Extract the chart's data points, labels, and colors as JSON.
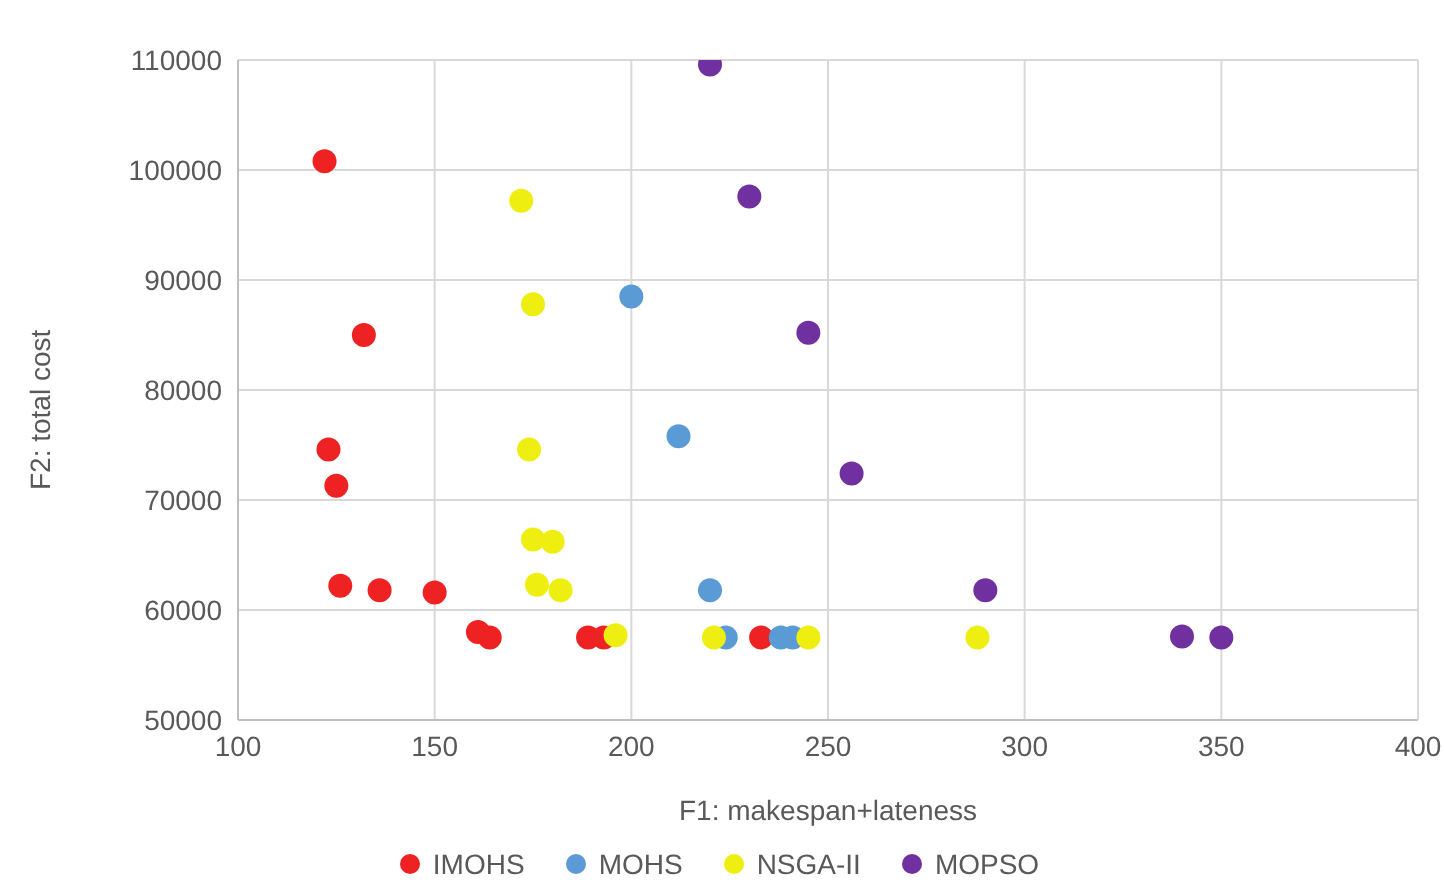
{
  "chart_data": {
    "type": "scatter",
    "xlabel": "F1: makespan+lateness",
    "ylabel": "F2: total cost",
    "xlim": [
      100,
      400
    ],
    "xticks": [
      100,
      150,
      200,
      250,
      300,
      350,
      400
    ],
    "ylim": [
      50000,
      110000
    ],
    "yticks": [
      50000,
      60000,
      70000,
      80000,
      90000,
      100000,
      110000
    ],
    "grid": true,
    "legend": "bottom",
    "marker": "circle",
    "series": [
      {
        "name": "IMOHS",
        "color": "#ee2222",
        "x": [
          122,
          132,
          123,
          125,
          126,
          136,
          150,
          161,
          164,
          189,
          193,
          233
        ],
        "values": [
          100800,
          85000,
          74600,
          71300,
          62200,
          61800,
          61600,
          58000,
          57500,
          57500,
          57500,
          57500
        ]
      },
      {
        "name": "MOHS",
        "color": "#5b9bd5",
        "x": [
          200,
          212,
          220,
          224,
          238,
          241
        ],
        "values": [
          88500,
          75800,
          61800,
          57500,
          57500,
          57500
        ]
      },
      {
        "name": "NSGA-II",
        "color": "#eeee11",
        "x": [
          172,
          175,
          174,
          175,
          180,
          176,
          182,
          196,
          221,
          245,
          288
        ],
        "values": [
          97200,
          87800,
          74600,
          66400,
          66200,
          62300,
          61800,
          57700,
          57500,
          57500,
          57500
        ]
      },
      {
        "name": "MOPSO",
        "color": "#7030a0",
        "x": [
          220,
          230,
          245,
          256,
          290,
          340,
          350
        ],
        "values": [
          109600,
          97600,
          85200,
          72400,
          61800,
          57600,
          57500
        ]
      }
    ]
  }
}
